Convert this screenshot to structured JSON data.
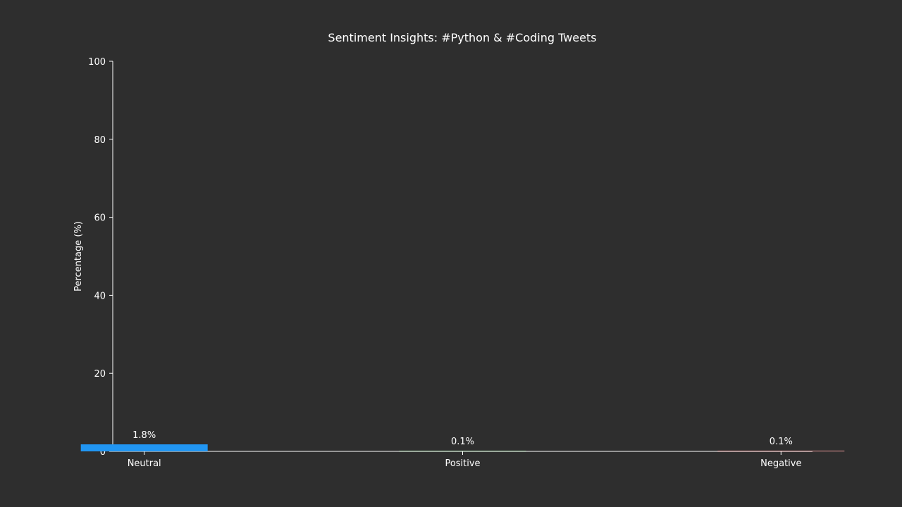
{
  "chart_data": {
    "type": "bar",
    "title": "Sentiment Insights: #Python & #Coding Tweets",
    "xlabel": "",
    "ylabel": "Percentage (%)",
    "categories": [
      "Neutral",
      "Positive",
      "Negative"
    ],
    "values": [
      1.8,
      0.1,
      0.1
    ],
    "value_labels": [
      "1.8%",
      "0.1%",
      "0.1%"
    ],
    "colors": [
      "#2196f3",
      "#a5d6a7",
      "#ef9a9a"
    ],
    "ylim": [
      0,
      100
    ],
    "yticks": [
      "0",
      "20",
      "40",
      "60",
      "80",
      "100"
    ],
    "grid": false,
    "background": "#2e2e2e",
    "text_color": "#ffffff"
  }
}
